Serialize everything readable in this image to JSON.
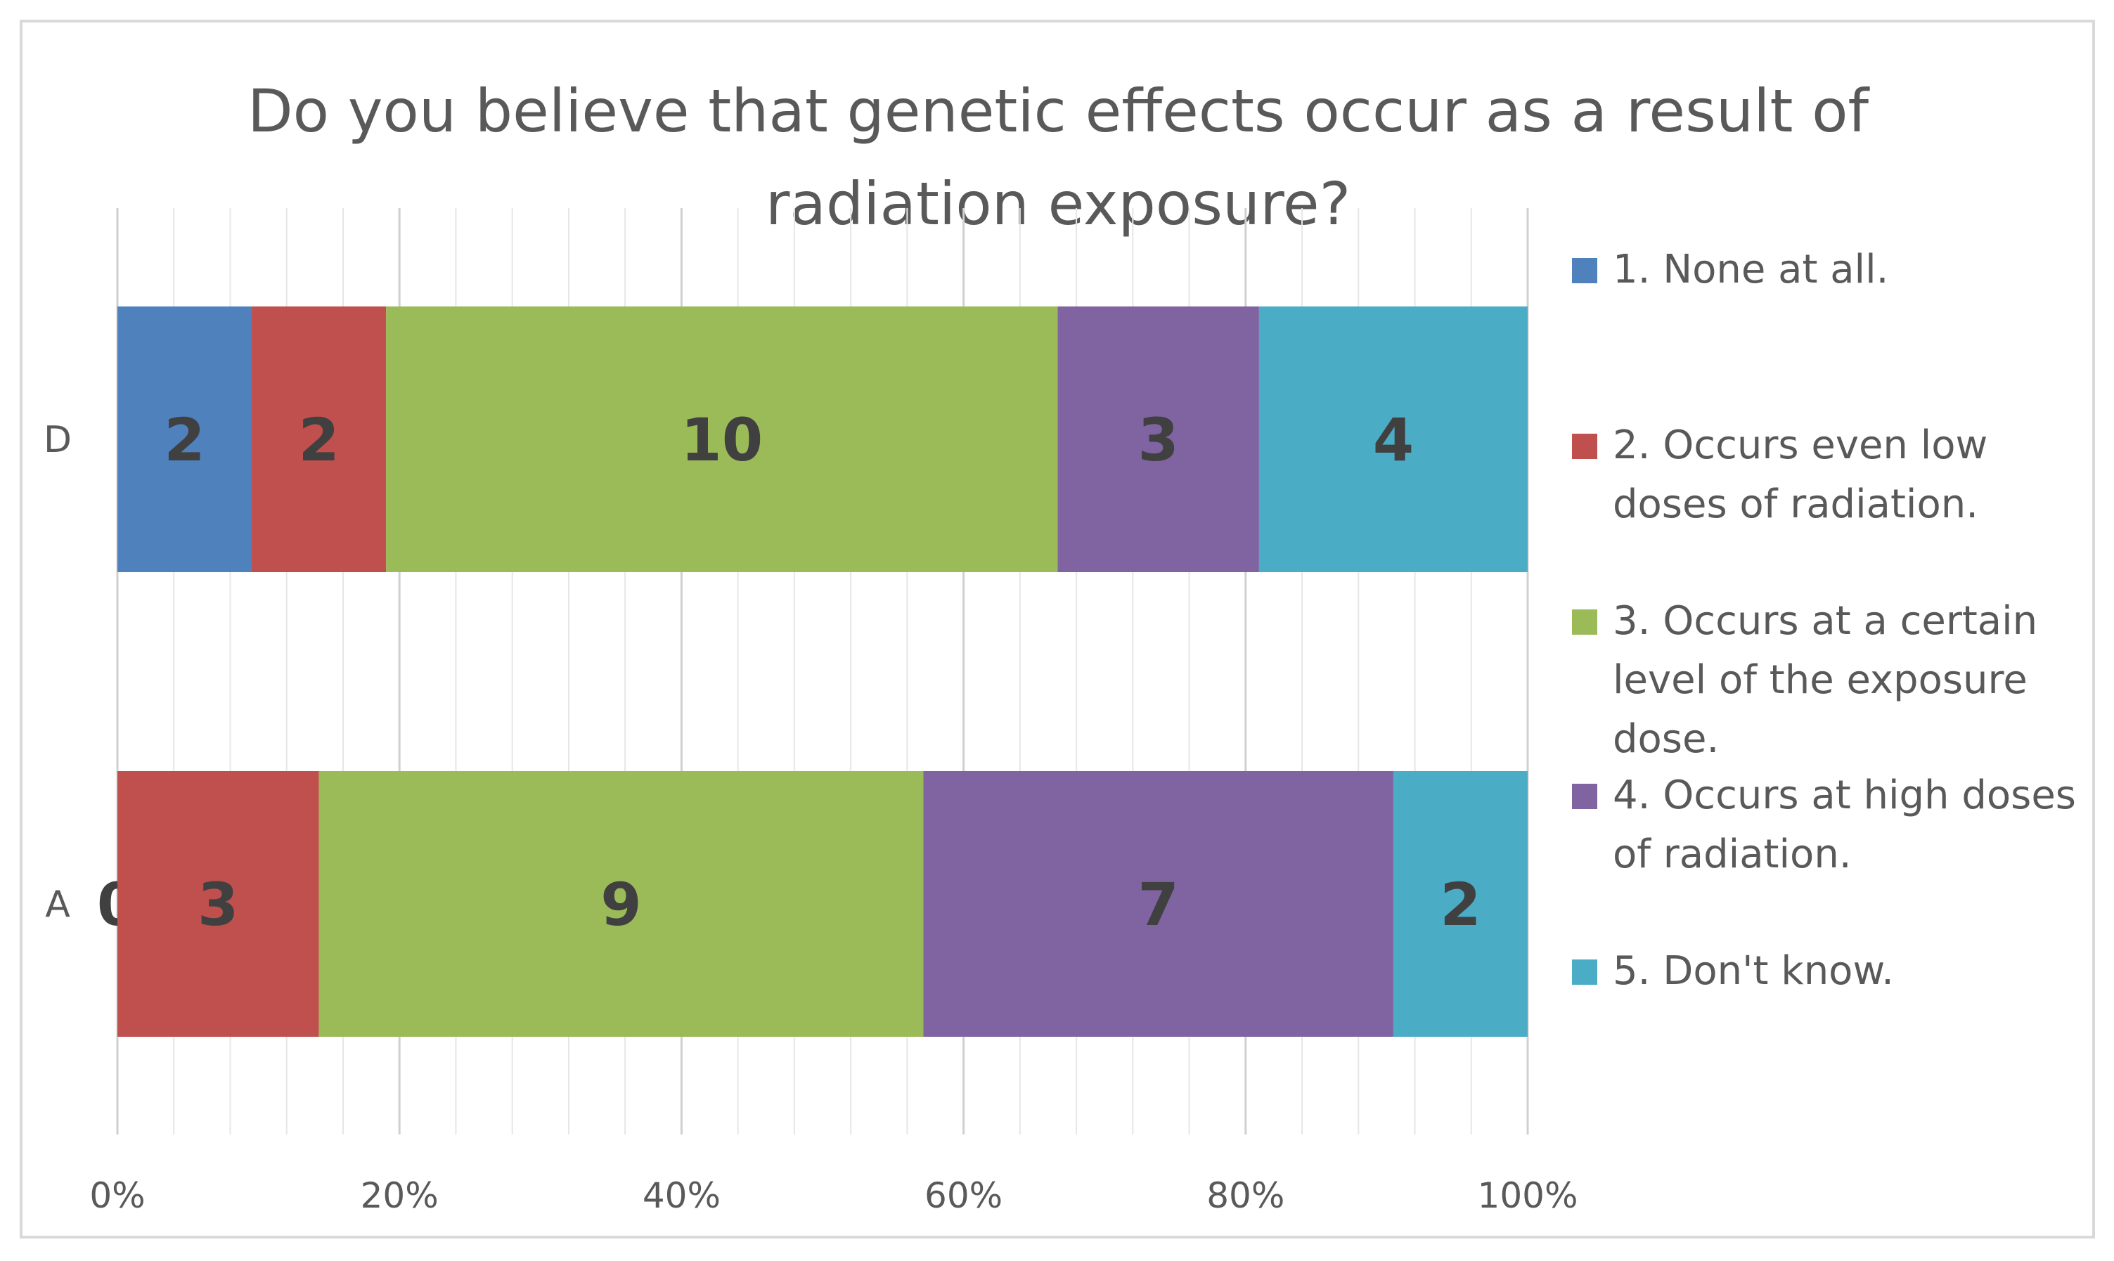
{
  "chart_data": {
    "type": "bar",
    "orientation": "horizontal",
    "stacked": "percent",
    "title": "Do you believe that genetic effects occur as a result of radiation exposure?",
    "title_lines": [
      "Do you believe that genetic effects occur as a result of",
      "radiation exposure?"
    ],
    "categories": [
      "D",
      "A"
    ],
    "series": [
      {
        "name": "1. None at all.",
        "values": [
          2,
          0
        ],
        "color": "#4f81bd"
      },
      {
        "name": "2. Occurs even low doses of radiation.",
        "values": [
          2,
          3
        ],
        "color": "#c0504d"
      },
      {
        "name": "3. Occurs at a certain level of the exposure dose.",
        "values": [
          10,
          9
        ],
        "color": "#9bbb59"
      },
      {
        "name": "4. Occurs at high doses of radiation.",
        "values": [
          3,
          7
        ],
        "color": "#8064a2"
      },
      {
        "name": "5. Don't know.",
        "values": [
          4,
          2
        ],
        "color": "#4bacc6"
      }
    ],
    "legend_lines": [
      [
        "1. None at all."
      ],
      [
        "2. Occurs even low",
        "doses of radiation."
      ],
      [
        "3. Occurs at a certain",
        "level of the exposure",
        "dose."
      ],
      [
        "4. Occurs at high doses",
        "of radiation."
      ],
      [
        "5. Don't know."
      ]
    ],
    "xticks": [
      "0%",
      "20%",
      "40%",
      "60%",
      "80%",
      "100%"
    ],
    "xlim": [
      0,
      100
    ],
    "grid": true,
    "legend_position": "right",
    "data_labels": true
  }
}
